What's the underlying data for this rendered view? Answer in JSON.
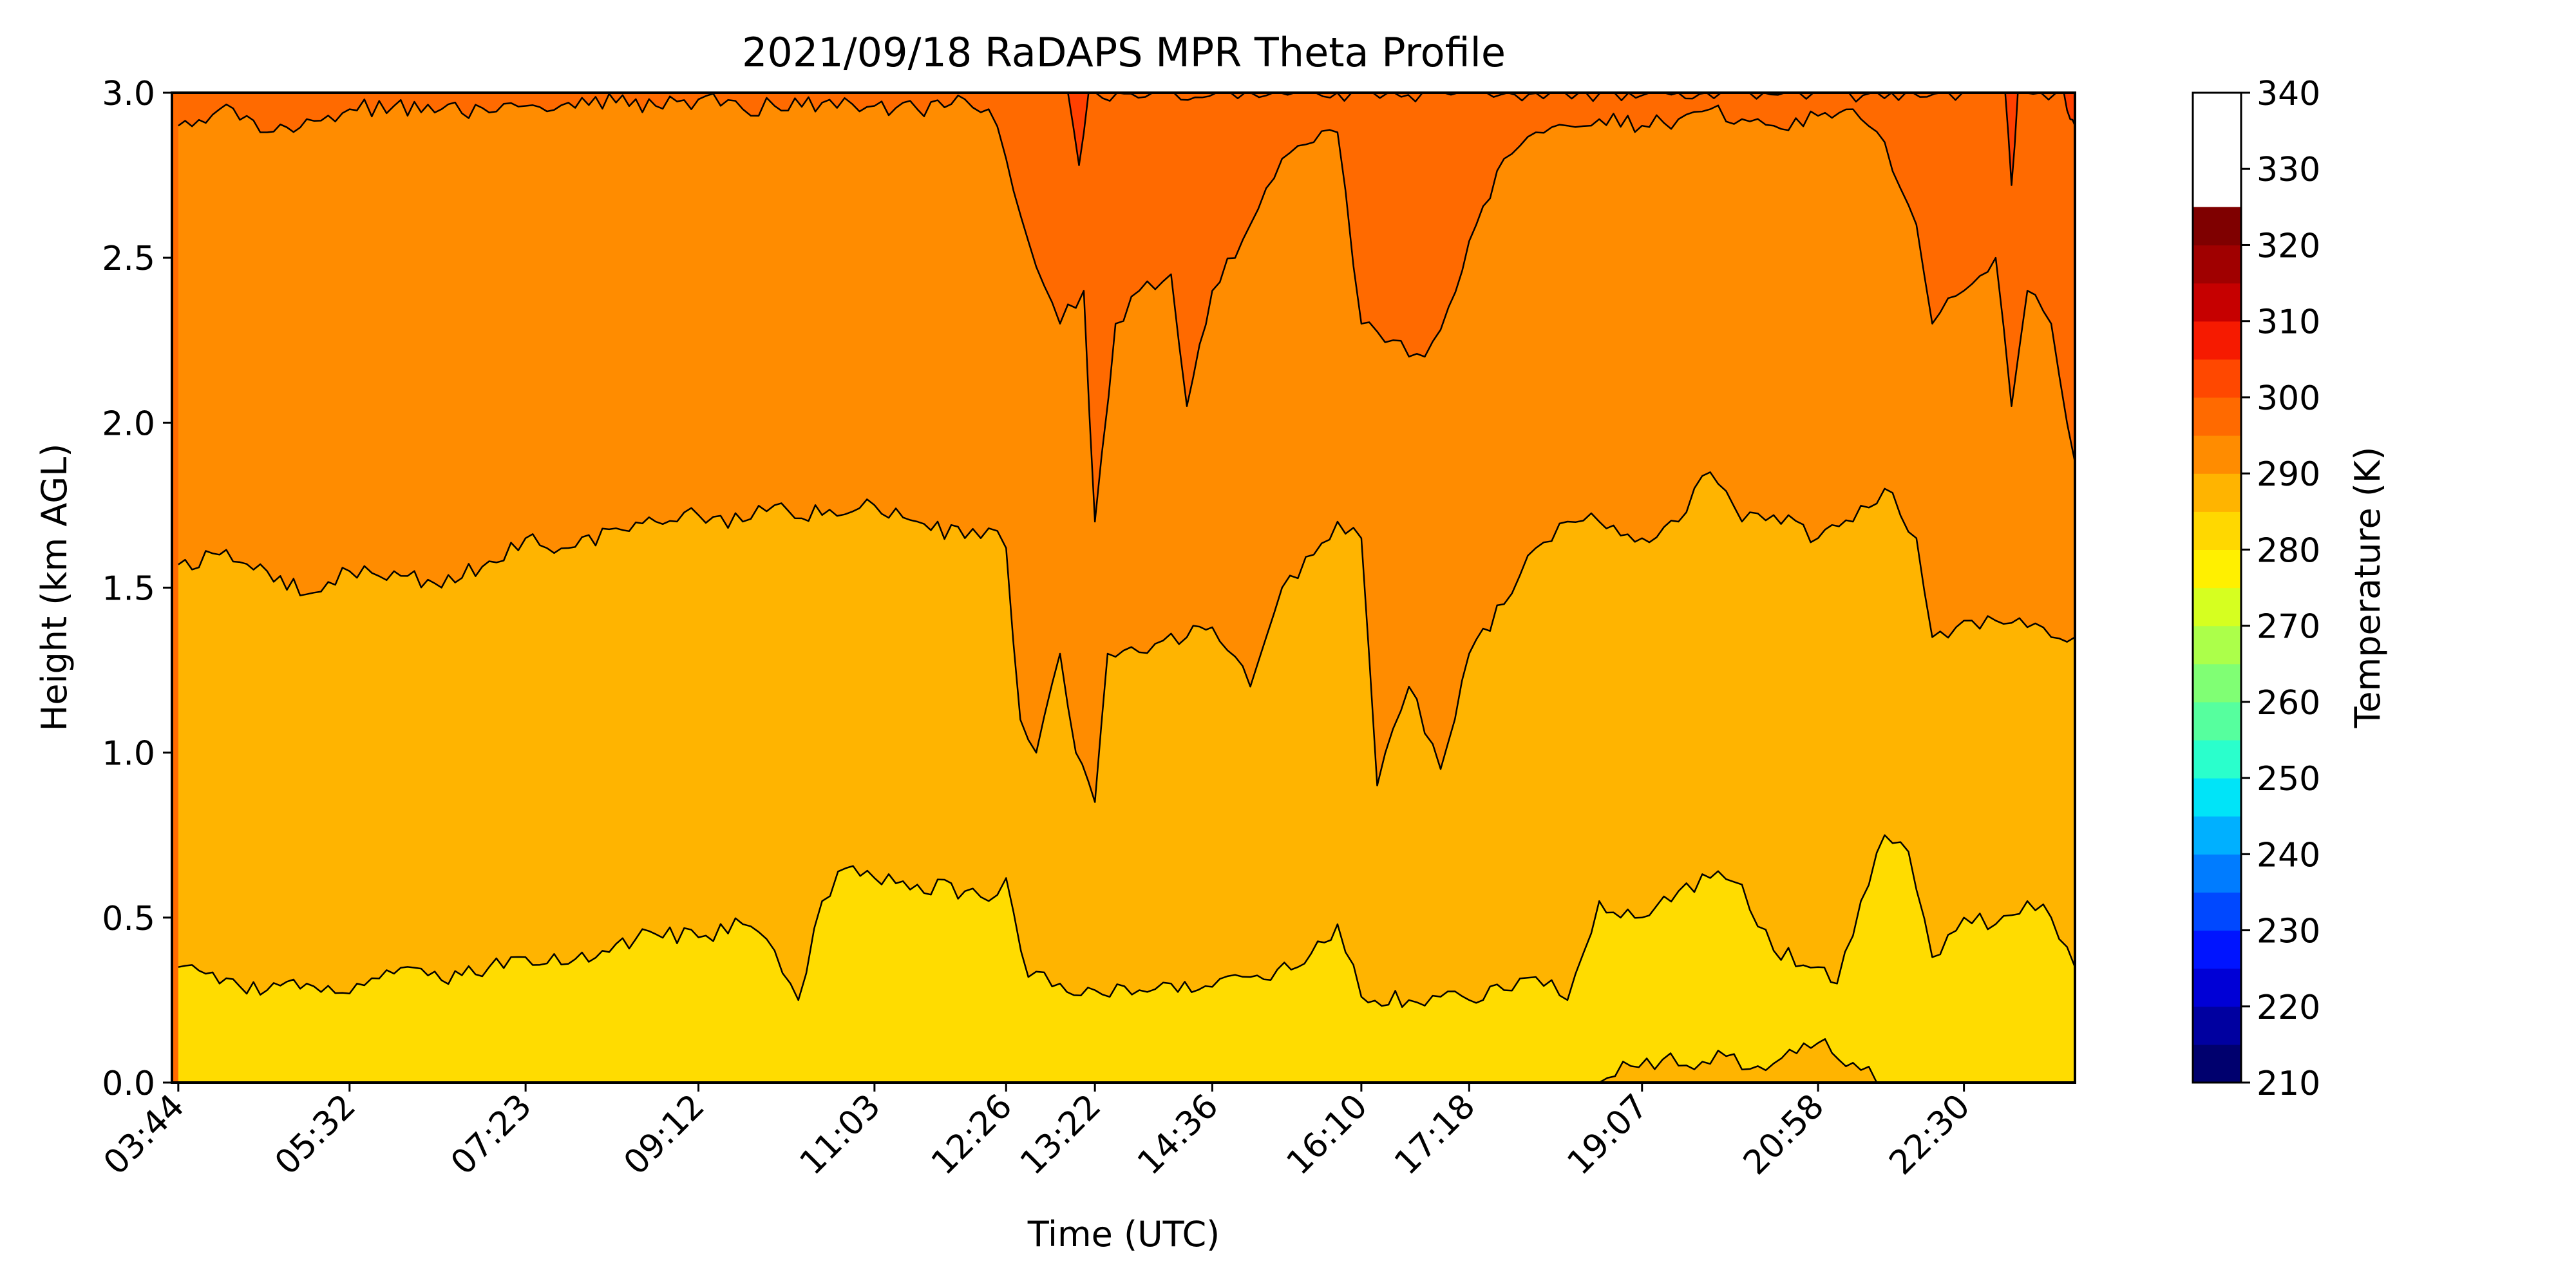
{
  "chart_data": {
    "type": "heatmap",
    "title": "2021/09/18 RaDAPS MPR Theta Profile",
    "xlabel": "Time (UTC)",
    "ylabel": "Height (km AGL)",
    "x_tick_labels": [
      "03:44",
      "05:32",
      "07:23",
      "09:12",
      "11:03",
      "12:26",
      "13:22",
      "14:36",
      "16:10",
      "17:18",
      "19:07",
      "20:58",
      "22:30"
    ],
    "x_range": [
      "03:40",
      "23:40"
    ],
    "ylim": [
      0,
      3.0
    ],
    "y_ticks": [
      0.0,
      0.5,
      1.0,
      1.5,
      2.0,
      2.5,
      3.0
    ],
    "y_tick_labels": [
      "0.0",
      "0.5",
      "1.0",
      "1.5",
      "2.0",
      "2.5",
      "3.0"
    ],
    "colorbar": {
      "label": "Temperature (K)",
      "min": 210,
      "max": 340,
      "step": 5,
      "tick_values": [
        210,
        220,
        230,
        240,
        250,
        260,
        270,
        280,
        290,
        300,
        310,
        320,
        330,
        340
      ],
      "tick_labels": [
        "210",
        "220",
        "230",
        "240",
        "250",
        "260",
        "270",
        "280",
        "290",
        "300",
        "310",
        "320",
        "330",
        "340"
      ],
      "colors": [
        "#00006e",
        "#0000a0",
        "#0000d6",
        "#0014ff",
        "#0048ff",
        "#007cff",
        "#00b0ff",
        "#00e4f8",
        "#2affcc",
        "#56ff9e",
        "#80ff74",
        "#acff4a",
        "#d6ff20",
        "#fff000",
        "#ffd800",
        "#ffb400",
        "#ff8c00",
        "#ff6a00",
        "#ff4800",
        "#f61a00",
        "#c60000",
        "#a00000",
        "#7f0000"
      ],
      "colors_note": "",
      "contour_line_color": "#000000"
    },
    "region_colors": {
      "295-300": "#ffdc00",
      "300-305": "#ffb400",
      "305-310": "#ff8c00",
      "310-315": "#ff6a00",
      "315-320": "#ff4000"
    },
    "contours": [
      {
        "level": 300,
        "times": [
          "03:44",
          "04:10",
          "04:40",
          "05:05",
          "05:32",
          "06:00",
          "06:30",
          "07:00",
          "07:23",
          "07:50",
          "08:20",
          "08:45",
          "09:12",
          "09:40",
          "10:00",
          "10:15",
          "10:30",
          "10:45",
          "11:03",
          "11:30",
          "12:00",
          "12:15",
          "12:26",
          "12:40",
          "13:00",
          "13:22",
          "13:50",
          "14:10",
          "14:36",
          "15:00",
          "15:30",
          "15:55",
          "16:10",
          "16:40",
          "17:00",
          "17:18",
          "17:40",
          "18:00",
          "18:20",
          "18:40",
          "19:07",
          "19:30",
          "19:50",
          "20:10",
          "20:30",
          "20:58",
          "21:10",
          "21:25",
          "21:40",
          "21:55",
          "22:10",
          "22:30",
          "22:50",
          "23:10",
          "23:25",
          "23:40"
        ],
        "heights_km": [
          0.35,
          0.3,
          0.28,
          0.3,
          0.27,
          0.33,
          0.31,
          0.35,
          0.38,
          0.36,
          0.42,
          0.45,
          0.44,
          0.48,
          0.4,
          0.25,
          0.55,
          0.65,
          0.62,
          0.6,
          0.58,
          0.55,
          0.62,
          0.32,
          0.3,
          0.28,
          0.28,
          0.3,
          0.29,
          0.32,
          0.35,
          0.48,
          0.26,
          0.25,
          0.26,
          0.25,
          0.28,
          0.32,
          0.25,
          0.55,
          0.5,
          0.58,
          0.62,
          0.6,
          0.4,
          0.35,
          0.3,
          0.55,
          0.75,
          0.7,
          0.38,
          0.5,
          0.48,
          0.55,
          0.5,
          0.35
        ]
      },
      {
        "level": 305,
        "times": [
          "03:44",
          "04:10",
          "04:40",
          "05:05",
          "05:32",
          "06:00",
          "06:30",
          "07:00",
          "07:23",
          "07:50",
          "08:20",
          "08:45",
          "09:12",
          "09:40",
          "10:00",
          "10:30",
          "11:03",
          "11:30",
          "12:00",
          "12:15",
          "12:26",
          "12:35",
          "12:45",
          "13:00",
          "13:10",
          "13:22",
          "13:30",
          "13:45",
          "14:00",
          "14:20",
          "14:36",
          "15:00",
          "15:20",
          "15:40",
          "15:55",
          "16:10",
          "16:20",
          "16:40",
          "17:00",
          "17:18",
          "17:40",
          "18:00",
          "18:20",
          "18:40",
          "19:07",
          "19:30",
          "19:50",
          "20:10",
          "20:30",
          "20:58",
          "21:20",
          "21:40",
          "22:00",
          "22:10",
          "22:30",
          "22:50",
          "23:10",
          "23:25",
          "23:40"
        ],
        "heights_km": [
          1.57,
          1.6,
          1.55,
          1.48,
          1.55,
          1.55,
          1.5,
          1.58,
          1.65,
          1.62,
          1.68,
          1.7,
          1.72,
          1.7,
          1.75,
          1.72,
          1.75,
          1.7,
          1.65,
          1.68,
          1.62,
          1.1,
          1.0,
          1.3,
          1.0,
          0.85,
          1.3,
          1.32,
          1.33,
          1.35,
          1.38,
          1.2,
          1.5,
          1.6,
          1.7,
          1.65,
          0.9,
          1.2,
          0.95,
          1.3,
          1.45,
          1.62,
          1.7,
          1.7,
          1.65,
          1.7,
          1.85,
          1.7,
          1.72,
          1.65,
          1.7,
          1.8,
          1.65,
          1.35,
          1.4,
          1.4,
          1.38,
          1.35,
          1.35
        ]
      },
      {
        "level": 310,
        "times": [
          "03:44",
          "04:10",
          "04:40",
          "05:05",
          "05:32",
          "06:00",
          "06:30",
          "07:00",
          "07:23",
          "07:50",
          "08:20",
          "08:45",
          "09:12",
          "09:40",
          "10:00",
          "10:30",
          "11:03",
          "11:30",
          "12:00",
          "12:15",
          "12:26",
          "12:40",
          "13:00",
          "13:15",
          "13:22",
          "13:35",
          "13:50",
          "14:10",
          "14:20",
          "14:36",
          "15:00",
          "15:20",
          "15:40",
          "15:55",
          "16:10",
          "16:30",
          "16:50",
          "17:05",
          "17:18",
          "17:40",
          "18:00",
          "18:20",
          "18:40",
          "19:07",
          "19:30",
          "19:50",
          "20:10",
          "20:30",
          "20:58",
          "21:20",
          "21:40",
          "22:00",
          "22:10",
          "22:30",
          "22:50",
          "23:00",
          "23:10",
          "23:25",
          "23:40"
        ],
        "heights_km": [
          2.9,
          2.95,
          2.88,
          2.92,
          2.95,
          2.96,
          2.95,
          2.94,
          2.96,
          2.97,
          2.97,
          2.96,
          2.98,
          2.95,
          2.96,
          2.97,
          2.96,
          2.95,
          2.98,
          2.95,
          2.8,
          2.55,
          2.3,
          2.4,
          1.7,
          2.3,
          2.4,
          2.45,
          2.05,
          2.4,
          2.6,
          2.8,
          2.85,
          2.88,
          2.3,
          2.25,
          2.2,
          2.35,
          2.55,
          2.8,
          2.88,
          2.9,
          2.92,
          2.9,
          2.92,
          2.95,
          2.92,
          2.9,
          2.93,
          2.95,
          2.85,
          2.6,
          2.3,
          2.4,
          2.5,
          2.05,
          2.4,
          2.3,
          1.88
        ]
      },
      {
        "level": 315,
        "times": [
          "13:05",
          "13:12",
          "13:18",
          "22:56",
          "23:00",
          "23:04",
          "23:33",
          "23:37",
          "23:40"
        ],
        "heights_km": [
          3.0,
          2.78,
          3.0,
          3.0,
          2.72,
          3.0,
          3.0,
          2.92,
          2.9
        ]
      },
      {
        "level": 295,
        "times": [
          "18:40",
          "19:00",
          "19:20",
          "19:40",
          "20:00",
          "20:20",
          "20:40",
          "20:58",
          "21:20",
          "21:40"
        ],
        "heights_km": [
          0.0,
          0.05,
          0.07,
          0.04,
          0.08,
          0.05,
          0.1,
          0.12,
          0.06,
          0.0
        ]
      }
    ]
  }
}
